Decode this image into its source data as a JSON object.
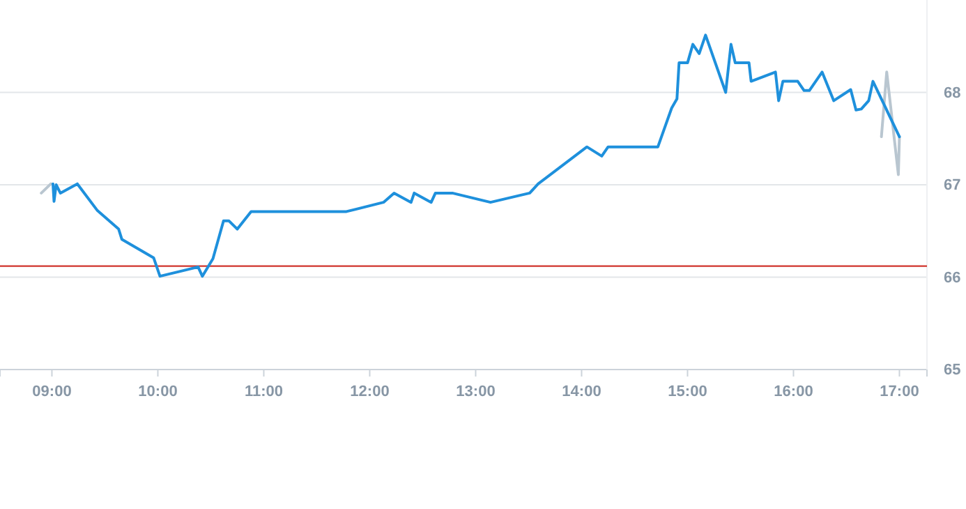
{
  "chart_data": {
    "type": "line",
    "xlim": [
      8.51,
      17.26
    ],
    "ylim": [
      65,
      69
    ],
    "xticks": [
      {
        "value": 9,
        "label": "09:00"
      },
      {
        "value": 10,
        "label": "10:00"
      },
      {
        "value": 11,
        "label": "11:00"
      },
      {
        "value": 12,
        "label": "12:00"
      },
      {
        "value": 13,
        "label": "13:00"
      },
      {
        "value": 14,
        "label": "14:00"
      },
      {
        "value": 15,
        "label": "15:00"
      },
      {
        "value": 16,
        "label": "16:00"
      },
      {
        "value": 17,
        "label": "17:00"
      }
    ],
    "yticks": [
      65,
      66,
      67,
      68
    ],
    "grid": "y",
    "marker": "none",
    "line_style": "solid",
    "ref_lines": [
      {
        "axis": "y",
        "value": 66.12,
        "color": "#d0342c"
      }
    ],
    "series": [
      {
        "color": "#b9c6d0",
        "x": [
          8.9,
          8.99,
          9.5,
          16.83,
          16.88,
          16.99,
          17.0
        ],
        "values": [
          66.91,
          67.01,
          null,
          67.52,
          68.22,
          67.11,
          67.52
        ]
      },
      {
        "color": "#1e90dc",
        "x": [
          9.01,
          9.02,
          9.04,
          9.08,
          9.24,
          9.43,
          9.63,
          9.66,
          9.96,
          10.02,
          10.38,
          10.42,
          10.52,
          10.62,
          10.67,
          10.75,
          10.88,
          11.78,
          12.13,
          12.23,
          12.39,
          12.42,
          12.58,
          12.62,
          12.78,
          13.14,
          13.51,
          13.59,
          14.05,
          14.19,
          14.25,
          14.72,
          14.85,
          14.9,
          14.92,
          15.0,
          15.05,
          15.11,
          15.17,
          15.36,
          15.41,
          15.45,
          15.58,
          15.6,
          15.83,
          15.86,
          15.9,
          16.04,
          16.1,
          16.15,
          16.27,
          16.38,
          16.54,
          16.59,
          16.64,
          16.71,
          16.75,
          17.0
        ],
        "values": [
          67.01,
          66.82,
          67.0,
          66.91,
          67.01,
          66.72,
          66.52,
          66.41,
          66.21,
          66.01,
          66.11,
          66.01,
          66.2,
          66.61,
          66.61,
          66.52,
          66.71,
          66.71,
          66.81,
          66.91,
          66.81,
          66.91,
          66.81,
          66.91,
          66.91,
          66.81,
          66.91,
          67.01,
          67.41,
          67.31,
          67.41,
          67.41,
          67.83,
          67.93,
          68.32,
          68.32,
          68.52,
          68.42,
          68.62,
          68.0,
          68.52,
          68.32,
          68.32,
          68.12,
          68.22,
          67.91,
          68.12,
          68.12,
          68.02,
          68.02,
          68.22,
          67.91,
          68.03,
          67.81,
          67.82,
          67.91,
          68.12,
          67.52
        ]
      }
    ]
  }
}
